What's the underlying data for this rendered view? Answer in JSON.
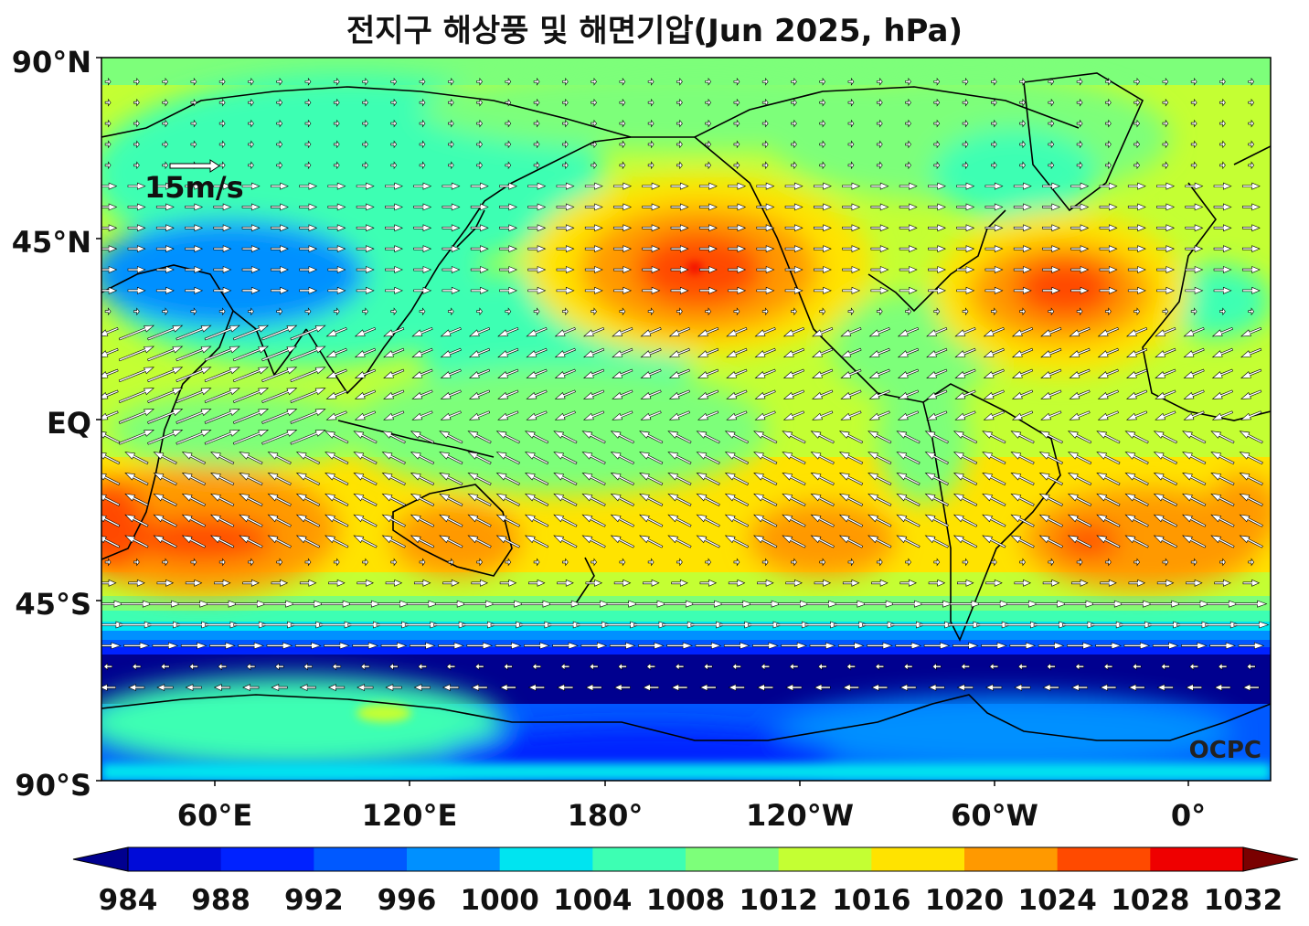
{
  "title": "전지구 해상풍 및 해면기압(Jun 2025, hPa)",
  "credit": "OCPC",
  "wind_scale": {
    "label": "15m/s",
    "speed_ms": 15
  },
  "axes": {
    "y_ticks": [
      "90°N",
      "45°N",
      "EQ",
      "45°S",
      "90°S"
    ],
    "x_ticks": [
      "60°E",
      "120°E",
      "180°",
      "120°W",
      "60°W",
      "0°"
    ]
  },
  "colorbar": {
    "labels": [
      "984",
      "988",
      "992",
      "996",
      "1000",
      "1004",
      "1008",
      "1012",
      "1016",
      "1020",
      "1024",
      "1028",
      "1032"
    ],
    "colors": [
      "#00008f",
      "#000bd8",
      "#0022ff",
      "#0059ff",
      "#0090ff",
      "#00e4f0",
      "#3dffb3",
      "#7dff7a",
      "#c4ff33",
      "#ffe300",
      "#ff9900",
      "#ff4a00",
      "#ef0000",
      "#8f0000",
      "#7a0000"
    ]
  },
  "colors": {
    "land_outline": "#000000",
    "frame": "#000000",
    "arrow_fill": "#ffffff",
    "arrow_edge": "#000000"
  }
}
